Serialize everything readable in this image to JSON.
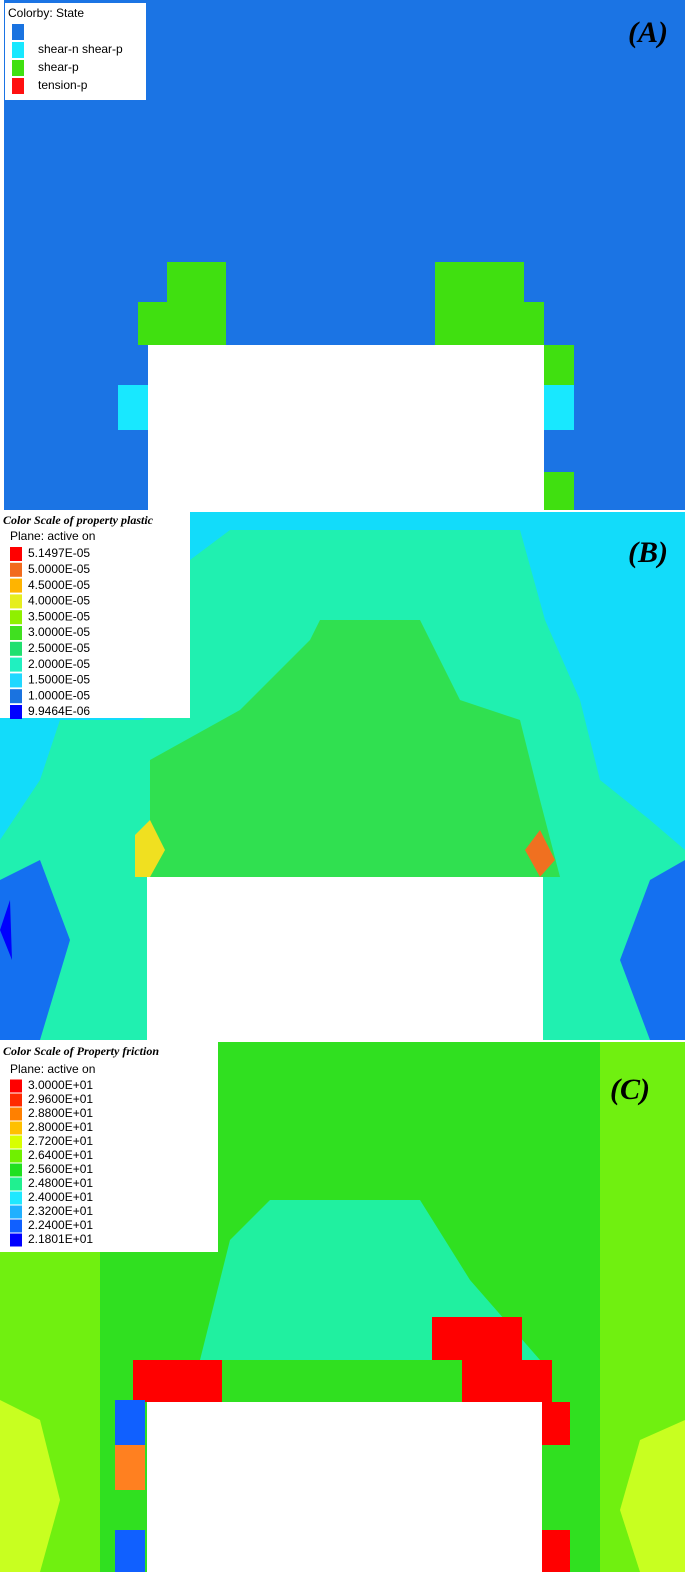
{
  "panels": [
    {
      "label": "(A)",
      "legend": {
        "title": "Colorby: State",
        "items": [
          {
            "color": "#1a73e0"
          },
          {
            "text": "shear-n shear-p",
            "color": "#18e8ff"
          },
          {
            "text": "shear-p",
            "color": "#40e010"
          },
          {
            "text": "tension-p",
            "color": "#ff1010"
          }
        ]
      }
    },
    {
      "label": "(B)",
      "legend": {
        "title": "Color Scale of property plastic",
        "subtitle": "Plane: active on",
        "items": [
          {
            "text": "5.1497E-05",
            "color": "#ff0000"
          },
          {
            "text": "5.0000E-05",
            "color": "#f26b1d"
          },
          {
            "text": "4.5000E-05",
            "color": "#ffb400"
          },
          {
            "text": "4.0000E-05",
            "color": "#e6ee1e"
          },
          {
            "text": "3.5000E-05",
            "color": "#8ff000"
          },
          {
            "text": "3.0000E-05",
            "color": "#40e020"
          },
          {
            "text": "2.5000E-05",
            "color": "#20e070"
          },
          {
            "text": "2.0000E-05",
            "color": "#20f0c0"
          },
          {
            "text": "1.5000E-05",
            "color": "#20d8ff"
          },
          {
            "text": "1.0000E-05",
            "color": "#1a73e0"
          },
          {
            "text": "9.9464E-06",
            "color": "#0000ff"
          }
        ]
      }
    },
    {
      "label": "(C)",
      "legend": {
        "title": "Color Scale of Property friction",
        "subtitle": "Plane: active on",
        "items": [
          {
            "text": "3.0000E+01",
            "color": "#ff0000"
          },
          {
            "text": "2.9600E+01",
            "color": "#ff2a00"
          },
          {
            "text": "2.8800E+01",
            "color": "#ff8000"
          },
          {
            "text": "2.8000E+01",
            "color": "#ffc000"
          },
          {
            "text": "2.7200E+01",
            "color": "#d8ff00"
          },
          {
            "text": "2.6400E+01",
            "color": "#70f000"
          },
          {
            "text": "2.5600E+01",
            "color": "#20e020"
          },
          {
            "text": "2.4800E+01",
            "color": "#20f090"
          },
          {
            "text": "2.4000E+01",
            "color": "#20e8ff"
          },
          {
            "text": "2.3200E+01",
            "color": "#20b0ff"
          },
          {
            "text": "2.2400E+01",
            "color": "#1060ff"
          },
          {
            "text": "2.1801E+01",
            "color": "#0000ff"
          }
        ]
      }
    }
  ]
}
